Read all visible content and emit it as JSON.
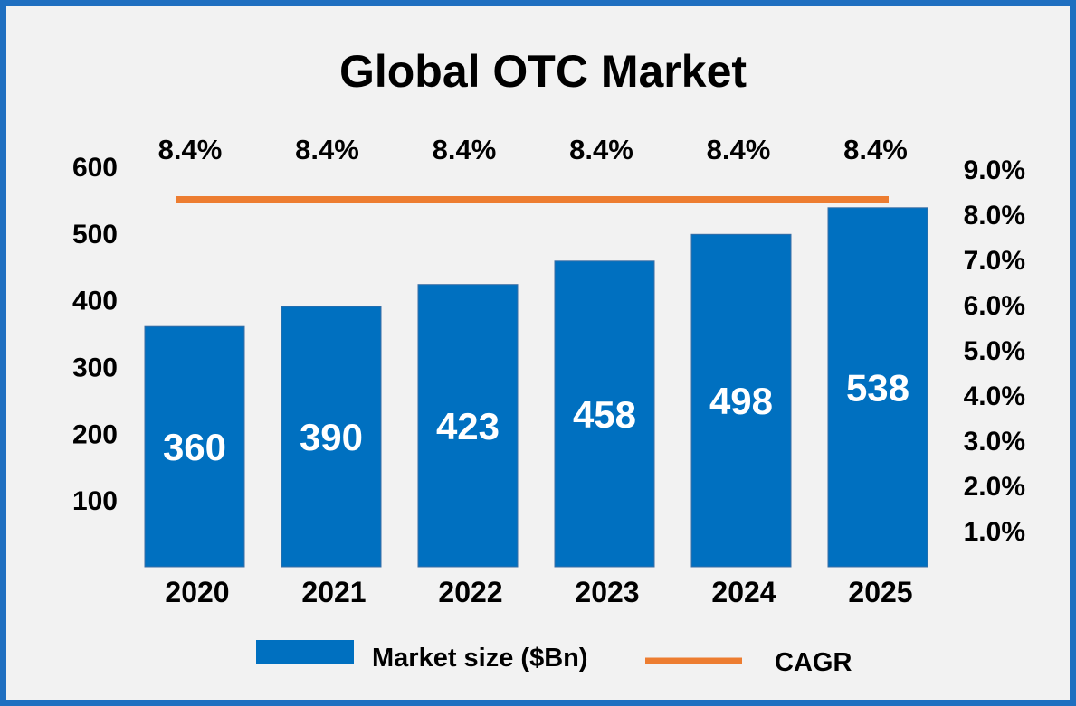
{
  "colors": {
    "frame_border": "#1f6fc0",
    "background": "#f2f2f2",
    "bar": "#0070c0",
    "cagr_line": "#ed7d31",
    "text": "#000000",
    "bar_label": "#ffffff"
  },
  "chart_data": {
    "type": "bar",
    "title": "Global OTC Market",
    "categories": [
      "2020",
      "2021",
      "2022",
      "2023",
      "2024",
      "2025"
    ],
    "series": [
      {
        "name": "Market size ($Bn)",
        "type": "bar",
        "axis": "left",
        "values": [
          360,
          390,
          423,
          458,
          498,
          538
        ],
        "labels": [
          "360",
          "390",
          "423",
          "458",
          "498",
          "538"
        ]
      },
      {
        "name": "CAGR",
        "type": "line",
        "axis": "right",
        "values": [
          8.4,
          8.4,
          8.4,
          8.4,
          8.4,
          8.4
        ],
        "labels": [
          "8.4%",
          "8.4%",
          "8.4%",
          "8.4%",
          "8.4%",
          "8.4%"
        ]
      }
    ],
    "y_left": {
      "ticks": [
        "100",
        "200",
        "300",
        "400",
        "500",
        "600"
      ]
    },
    "y_right": {
      "ticks": [
        "1.0%",
        "2.0%",
        "3.0%",
        "4.0%",
        "5.0%",
        "6.0%",
        "7.0%",
        "8.0%",
        "9.0%"
      ]
    },
    "legend": {
      "position": "bottom",
      "items": [
        "Market size ($Bn)",
        "CAGR"
      ]
    },
    "grid": false
  }
}
